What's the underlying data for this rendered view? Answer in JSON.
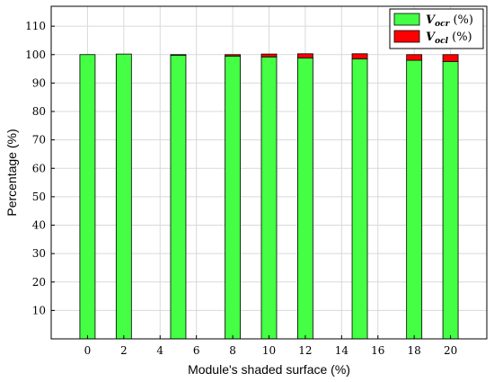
{
  "chart_data": {
    "type": "bar",
    "stacked": true,
    "categories": [
      "0",
      "2",
      "5",
      "8",
      "10",
      "12",
      "15",
      "18",
      "20"
    ],
    "series": [
      {
        "name": "V_ocr (%)",
        "legend_var": "V",
        "legend_sub": "ocr",
        "legend_unit": " (%)",
        "color": "#44ff44",
        "values": [
          100,
          100.2,
          99.8,
          99.5,
          99.2,
          98.8,
          98.5,
          98.0,
          97.6
        ]
      },
      {
        "name": "V_ocl (%)",
        "legend_var": "V",
        "legend_sub": "ocl",
        "legend_unit": " (%)",
        "color": "#ff0000",
        "values": [
          0,
          0,
          0.2,
          0.5,
          1.0,
          1.5,
          1.8,
          2.0,
          2.4
        ]
      }
    ],
    "xlabel": "Module's shaded surface (%)",
    "ylabel": "Percentage (%)",
    "x_ticks": [
      0,
      2,
      4,
      6,
      8,
      10,
      12,
      14,
      16,
      18,
      20
    ],
    "x_range": [
      -2,
      22
    ],
    "y_ticks": [
      10,
      20,
      30,
      40,
      50,
      60,
      70,
      80,
      90,
      100,
      110
    ],
    "ylim": [
      0,
      117
    ],
    "grid": true,
    "legend_position": "top-right"
  }
}
